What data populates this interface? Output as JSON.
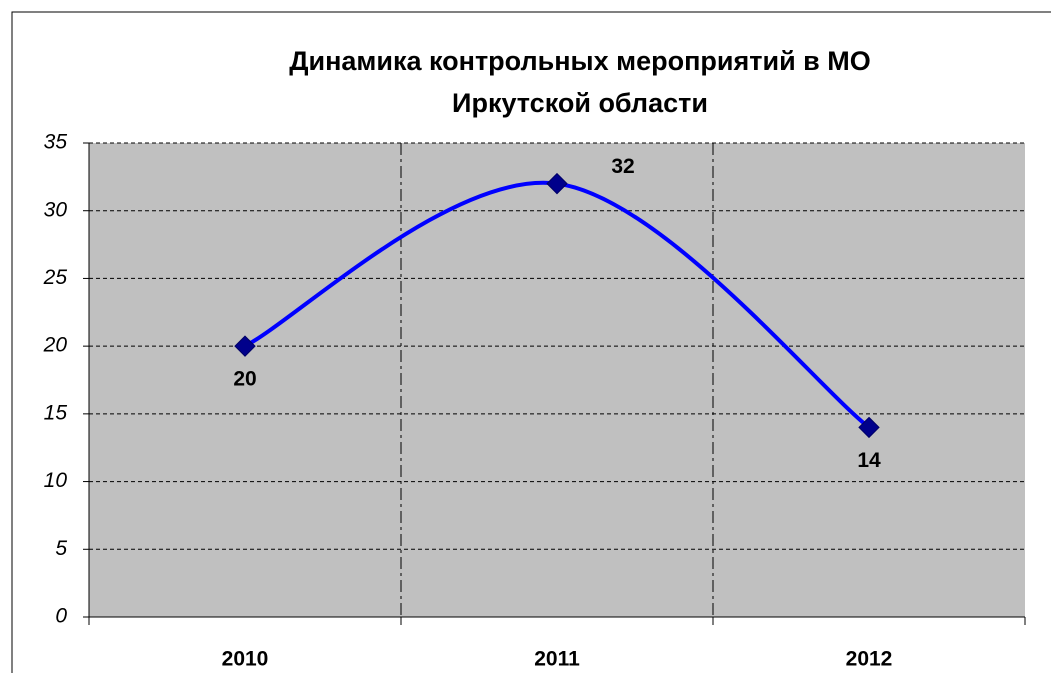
{
  "chart_data": {
    "type": "line",
    "title": "Динамика контрольных мероприятий в МО Иркутской области",
    "categories": [
      "2010",
      "2011",
      "2012"
    ],
    "series": [
      {
        "name": "",
        "color": "#0000ff",
        "marker_color": "#00008b",
        "values": [
          20,
          32,
          14
        ]
      }
    ],
    "ylim": [
      0,
      35
    ],
    "yticks": [
      0,
      5,
      10,
      15,
      20,
      25,
      30,
      35
    ],
    "grid": true,
    "background": "#c0c0c0"
  }
}
